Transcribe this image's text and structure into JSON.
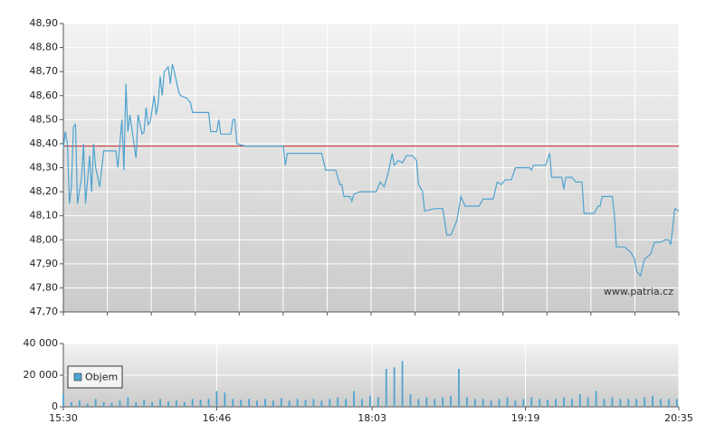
{
  "chart_data": [
    {
      "type": "line",
      "x": [
        "15:30",
        "15:31",
        "15:32",
        "15:33",
        "15:34",
        "15:35",
        "15:36",
        "15:37",
        "15:39",
        "15:40",
        "15:41",
        "15:43",
        "15:44",
        "15:45",
        "15:46",
        "15:48",
        "15:50",
        "15:56",
        "15:57",
        "15:59",
        "16:00",
        "16:01",
        "16:02",
        "16:03",
        "16:05",
        "16:06",
        "16:07",
        "16:09",
        "16:10",
        "16:11",
        "16:12",
        "16:13",
        "16:15",
        "16:16",
        "16:17",
        "16:18",
        "16:19",
        "16:20",
        "16:22",
        "16:23",
        "16:24",
        "16:25",
        "16:27",
        "16:28",
        "16:31",
        "16:33",
        "16:34",
        "16:42",
        "16:43",
        "16:46",
        "16:47",
        "16:48",
        "16:53",
        "16:54",
        "16:55",
        "16:56",
        "17:00",
        "17:19",
        "17:20",
        "17:21",
        "17:38",
        "17:40",
        "17:45",
        "17:47",
        "17:48",
        "17:49",
        "17:52",
        "17:53",
        "17:54",
        "17:57",
        "18:05",
        "18:07",
        "18:09",
        "18:11",
        "18:13",
        "18:14",
        "18:16",
        "18:18",
        "18:20",
        "18:23",
        "18:25",
        "18:26",
        "18:28",
        "18:29",
        "18:34",
        "18:38",
        "18:40",
        "18:42",
        "18:45",
        "18:47",
        "18:49",
        "18:56",
        "18:58",
        "19:03",
        "19:05",
        "19:07",
        "19:09",
        "19:12",
        "19:14",
        "19:21",
        "19:22",
        "19:23",
        "19:29",
        "19:31",
        "19:32",
        "19:37",
        "19:38",
        "19:39",
        "19:42",
        "19:44",
        "19:47",
        "19:48",
        "19:53",
        "19:55",
        "19:56",
        "19:57",
        "20:02",
        "20:03",
        "20:04",
        "20:08",
        "20:11",
        "20:13",
        "20:14",
        "20:16",
        "20:18",
        "20:21",
        "20:23",
        "20:26",
        "20:28",
        "20:30",
        "20:31",
        "20:33",
        "20:35"
      ],
      "values": [
        48.38,
        48.45,
        48.4,
        48.15,
        48.22,
        48.47,
        48.48,
        48.15,
        48.26,
        48.4,
        48.15,
        48.35,
        48.2,
        48.4,
        48.3,
        48.22,
        48.37,
        48.37,
        48.3,
        48.5,
        48.29,
        48.65,
        48.45,
        48.52,
        48.4,
        48.34,
        48.52,
        48.44,
        48.45,
        48.55,
        48.48,
        48.49,
        48.6,
        48.52,
        48.57,
        48.68,
        48.6,
        48.7,
        48.72,
        48.65,
        48.73,
        48.7,
        48.62,
        48.6,
        48.59,
        48.57,
        48.53,
        48.53,
        48.45,
        48.45,
        48.5,
        48.44,
        48.44,
        48.5,
        48.5,
        48.4,
        48.39,
        48.39,
        48.31,
        48.36,
        48.36,
        48.29,
        48.29,
        48.23,
        48.23,
        48.18,
        48.18,
        48.16,
        48.19,
        48.2,
        48.2,
        48.24,
        48.22,
        48.28,
        48.36,
        48.31,
        48.33,
        48.32,
        48.35,
        48.35,
        48.33,
        48.23,
        48.2,
        48.12,
        48.13,
        48.13,
        48.02,
        48.02,
        48.08,
        48.18,
        48.14,
        48.14,
        48.17,
        48.17,
        48.24,
        48.23,
        48.25,
        48.25,
        48.3,
        48.3,
        48.29,
        48.31,
        48.31,
        48.36,
        48.26,
        48.26,
        48.21,
        48.26,
        48.26,
        48.24,
        48.24,
        48.11,
        48.11,
        48.14,
        48.14,
        48.18,
        48.18,
        48.11,
        47.97,
        47.97,
        47.95,
        47.92,
        47.87,
        47.85,
        47.92,
        47.94,
        47.99,
        47.99,
        48.0,
        48.0,
        47.98,
        48.13,
        48.12
      ],
      "color": "#4ea3cf",
      "xlim": [
        "15:30",
        "20:35"
      ],
      "ylim": [
        47.7,
        48.9
      ],
      "yticks": [
        {
          "value": 47.7,
          "label": "47,70"
        },
        {
          "value": 47.8,
          "label": "47,80"
        },
        {
          "value": 47.9,
          "label": "47,90"
        },
        {
          "value": 48.0,
          "label": "48,00"
        },
        {
          "value": 48.1,
          "label": "48,10"
        },
        {
          "value": 48.2,
          "label": "48,20"
        },
        {
          "value": 48.3,
          "label": "48,30"
        },
        {
          "value": 48.4,
          "label": "48,40"
        },
        {
          "value": 48.5,
          "label": "48,50"
        },
        {
          "value": 48.6,
          "label": "48,60"
        },
        {
          "value": 48.7,
          "label": "48,70"
        },
        {
          "value": 48.8,
          "label": "48,80"
        },
        {
          "value": 48.9,
          "label": "48,90"
        }
      ],
      "reference_line": {
        "value": 48.39,
        "color": "#cc2222"
      },
      "annotation": "www.patria.cz",
      "grid": true
    },
    {
      "type": "bar",
      "x": [
        "15:30",
        "15:34",
        "15:38",
        "15:42",
        "15:46",
        "15:50",
        "15:54",
        "15:58",
        "16:02",
        "16:06",
        "16:10",
        "16:14",
        "16:18",
        "16:22",
        "16:26",
        "16:30",
        "16:34",
        "16:38",
        "16:42",
        "16:46",
        "16:50",
        "16:54",
        "16:58",
        "17:02",
        "17:06",
        "17:10",
        "17:14",
        "17:18",
        "17:22",
        "17:26",
        "17:30",
        "17:34",
        "17:38",
        "17:42",
        "17:46",
        "17:50",
        "17:54",
        "17:58",
        "18:02",
        "18:06",
        "18:10",
        "18:14",
        "18:18",
        "18:22",
        "18:26",
        "18:30",
        "18:34",
        "18:38",
        "18:42",
        "18:46",
        "18:50",
        "18:54",
        "18:58",
        "19:02",
        "19:06",
        "19:10",
        "19:14",
        "19:18",
        "19:22",
        "19:26",
        "19:30",
        "19:34",
        "19:38",
        "19:42",
        "19:46",
        "19:50",
        "19:54",
        "19:58",
        "20:02",
        "20:06",
        "20:10",
        "20:14",
        "20:18",
        "20:22",
        "20:26",
        "20:30",
        "20:34"
      ],
      "series": [
        {
          "name": "Objem",
          "color": "#4ea3cf",
          "values": [
            8000,
            3000,
            4000,
            2000,
            5000,
            3000,
            2500,
            4000,
            6000,
            3000,
            4500,
            3000,
            5000,
            3500,
            4000,
            3000,
            5000,
            4500,
            5000,
            10000,
            9000,
            5000,
            4500,
            5000,
            4000,
            5000,
            4000,
            5500,
            4000,
            5000,
            4500,
            5000,
            4000,
            5000,
            6000,
            5000,
            10000,
            5000,
            7000,
            6000,
            24000,
            25000,
            29000,
            8000,
            5000,
            6000,
            5000,
            6000,
            7000,
            24000,
            6000,
            5000,
            5000,
            4000,
            5000,
            6000,
            4000,
            5000,
            6000,
            5000,
            4500,
            5000,
            6000,
            5000,
            8000,
            6000,
            10000,
            5000,
            6000,
            5000,
            5000,
            5000,
            6000,
            7000,
            5000,
            5000,
            5000
          ]
        }
      ],
      "xlim": [
        "15:30",
        "20:35"
      ],
      "xticks": [
        "15:30",
        "16:46",
        "18:03",
        "19:19",
        "20:35"
      ],
      "ylim": [
        0,
        40000
      ],
      "yticks": [
        0,
        {
          "value": 20000,
          "label": "20 000"
        },
        {
          "value": 40000,
          "label": "40 000"
        }
      ],
      "grid": true
    }
  ]
}
